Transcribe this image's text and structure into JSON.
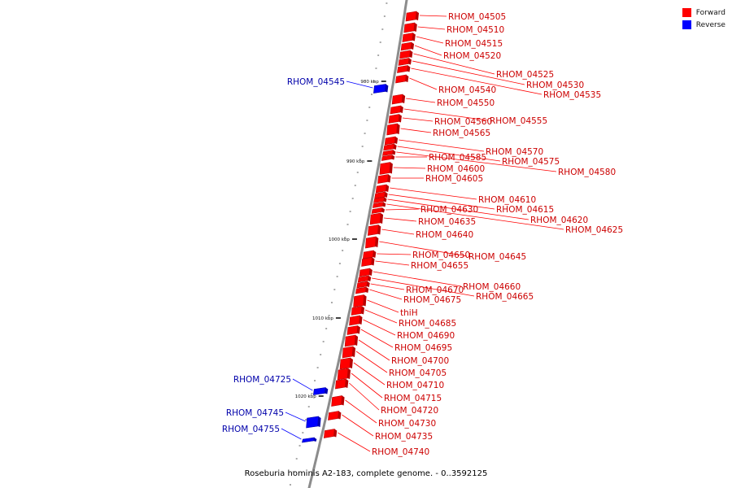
{
  "caption": "Roseburia hominis A2-183, complete genome. - 0..3592125",
  "legend": [
    {
      "label": "Forward",
      "color": "#ff0000"
    },
    {
      "label": "Reverse",
      "color": "#0000ff"
    }
  ],
  "colors": {
    "forward": "#ff0000",
    "reverse": "#0000ff",
    "backbone": "#8c8c8c"
  },
  "scale_ticks": [
    {
      "label": "980 kbp",
      "value": 980
    },
    {
      "label": "990 kbp",
      "value": 990
    },
    {
      "label": "1000 kbp",
      "value": 1000
    },
    {
      "label": "1010 kbp",
      "value": 1010
    },
    {
      "label": "1020 kbp",
      "value": 1020
    }
  ],
  "genes": [
    {
      "name": "RHOM_04505",
      "strand": "forward"
    },
    {
      "name": "RHOM_04510",
      "strand": "forward"
    },
    {
      "name": "RHOM_04515",
      "strand": "forward"
    },
    {
      "name": "RHOM_04520",
      "strand": "forward"
    },
    {
      "name": "RHOM_04525",
      "strand": "forward"
    },
    {
      "name": "RHOM_04530",
      "strand": "forward"
    },
    {
      "name": "RHOM_04535",
      "strand": "forward"
    },
    {
      "name": "RHOM_04540",
      "strand": "forward"
    },
    {
      "name": "RHOM_04545",
      "strand": "reverse"
    },
    {
      "name": "RHOM_04550",
      "strand": "forward"
    },
    {
      "name": "RHOM_04555",
      "strand": "forward"
    },
    {
      "name": "RHOM_04560",
      "strand": "forward"
    },
    {
      "name": "RHOM_04565",
      "strand": "forward"
    },
    {
      "name": "RHOM_04570",
      "strand": "forward"
    },
    {
      "name": "RHOM_04575",
      "strand": "forward"
    },
    {
      "name": "RHOM_04580",
      "strand": "forward"
    },
    {
      "name": "RHOM_04585",
      "strand": "forward"
    },
    {
      "name": "RHOM_04600",
      "strand": "forward"
    },
    {
      "name": "RHOM_04605",
      "strand": "forward"
    },
    {
      "name": "RHOM_04610",
      "strand": "forward"
    },
    {
      "name": "RHOM_04615",
      "strand": "forward"
    },
    {
      "name": "RHOM_04620",
      "strand": "forward"
    },
    {
      "name": "RHOM_04625",
      "strand": "forward"
    },
    {
      "name": "RHOM_04630",
      "strand": "forward"
    },
    {
      "name": "RHOM_04635",
      "strand": "forward"
    },
    {
      "name": "RHOM_04640",
      "strand": "forward"
    },
    {
      "name": "RHOM_04645",
      "strand": "forward"
    },
    {
      "name": "RHOM_04650",
      "strand": "forward"
    },
    {
      "name": "RHOM_04655",
      "strand": "forward"
    },
    {
      "name": "RHOM_04660",
      "strand": "forward"
    },
    {
      "name": "RHOM_04665",
      "strand": "forward"
    },
    {
      "name": "RHOM_04670",
      "strand": "forward"
    },
    {
      "name": "RHOM_04675",
      "strand": "forward"
    },
    {
      "name": "thiH",
      "strand": "forward"
    },
    {
      "name": "RHOM_04685",
      "strand": "forward"
    },
    {
      "name": "RHOM_04690",
      "strand": "forward"
    },
    {
      "name": "RHOM_04695",
      "strand": "forward"
    },
    {
      "name": "RHOM_04700",
      "strand": "forward"
    },
    {
      "name": "RHOM_04705",
      "strand": "forward"
    },
    {
      "name": "RHOM_04710",
      "strand": "forward"
    },
    {
      "name": "RHOM_04715",
      "strand": "forward"
    },
    {
      "name": "RHOM_04720",
      "strand": "forward"
    },
    {
      "name": "RHOM_04725",
      "strand": "reverse"
    },
    {
      "name": "RHOM_04730",
      "strand": "forward"
    },
    {
      "name": "RHOM_04735",
      "strand": "forward"
    },
    {
      "name": "RHOM_04740",
      "strand": "forward"
    },
    {
      "name": "RHOM_04745",
      "strand": "reverse"
    },
    {
      "name": "RHOM_04755",
      "strand": "reverse"
    }
  ]
}
